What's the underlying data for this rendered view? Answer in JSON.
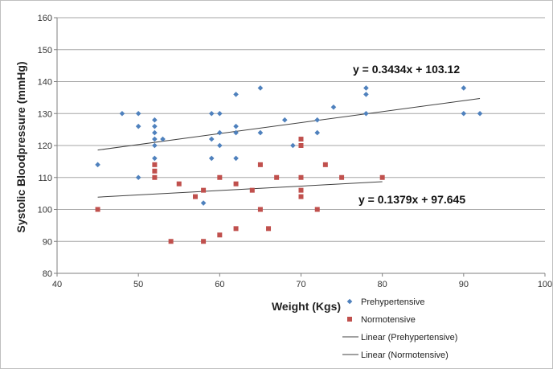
{
  "chart_data": {
    "type": "scatter",
    "title": "",
    "xlabel": "Weight (Kgs)",
    "ylabel": "Systolic Bloodpressure (mmHg)",
    "xlim": [
      40,
      100
    ],
    "ylim": [
      80,
      160
    ],
    "x_ticks": [
      40,
      50,
      60,
      70,
      80,
      90,
      100
    ],
    "y_ticks": [
      80,
      90,
      100,
      110,
      120,
      130,
      140,
      150,
      160
    ],
    "grid": "horizontal",
    "legend_position": "bottom-right",
    "series": [
      {
        "name": "Prehypertensive",
        "marker": "diamond",
        "color": "#4f81bd",
        "points": [
          [
            45,
            114
          ],
          [
            48,
            130
          ],
          [
            50,
            130
          ],
          [
            50,
            126
          ],
          [
            50,
            110
          ],
          [
            52,
            128
          ],
          [
            52,
            126
          ],
          [
            52,
            124
          ],
          [
            52,
            122
          ],
          [
            52,
            120
          ],
          [
            52,
            116
          ],
          [
            53,
            122
          ],
          [
            58,
            102
          ],
          [
            59,
            130
          ],
          [
            59,
            122
          ],
          [
            59,
            116
          ],
          [
            60,
            130
          ],
          [
            60,
            124
          ],
          [
            60,
            120
          ],
          [
            62,
            136
          ],
          [
            62,
            126
          ],
          [
            62,
            124
          ],
          [
            62,
            116
          ],
          [
            65,
            138
          ],
          [
            65,
            124
          ],
          [
            68,
            128
          ],
          [
            69,
            120
          ],
          [
            72,
            128
          ],
          [
            72,
            124
          ],
          [
            74,
            132
          ],
          [
            78,
            138
          ],
          [
            78,
            136
          ],
          [
            78,
            130
          ],
          [
            90,
            138
          ],
          [
            90,
            130
          ],
          [
            92,
            130
          ]
        ]
      },
      {
        "name": "Normotensive",
        "marker": "square",
        "color": "#c0504d",
        "points": [
          [
            45,
            100
          ],
          [
            52,
            114
          ],
          [
            52,
            112
          ],
          [
            52,
            110
          ],
          [
            54,
            90
          ],
          [
            55,
            108
          ],
          [
            57,
            104
          ],
          [
            58,
            106
          ],
          [
            58,
            90
          ],
          [
            60,
            110
          ],
          [
            60,
            92
          ],
          [
            62,
            108
          ],
          [
            62,
            94
          ],
          [
            64,
            106
          ],
          [
            65,
            114
          ],
          [
            65,
            100
          ],
          [
            66,
            94
          ],
          [
            67,
            110
          ],
          [
            70,
            122
          ],
          [
            70,
            120
          ],
          [
            70,
            110
          ],
          [
            70,
            106
          ],
          [
            70,
            104
          ],
          [
            72,
            100
          ],
          [
            73,
            114
          ],
          [
            75,
            110
          ],
          [
            80,
            110
          ]
        ]
      }
    ],
    "trendlines": [
      {
        "name": "Linear (Prehypertensive)",
        "slope": 0.3434,
        "intercept": 103.12,
        "x_range": [
          45,
          92
        ],
        "equation": "y = 0.3434x + 103.12",
        "color": "#404040"
      },
      {
        "name": "Linear (Normotensive)",
        "slope": 0.1379,
        "intercept": 97.645,
        "x_range": [
          45,
          80
        ],
        "equation": "y = 0.1379x + 97.645",
        "color": "#404040"
      }
    ]
  }
}
